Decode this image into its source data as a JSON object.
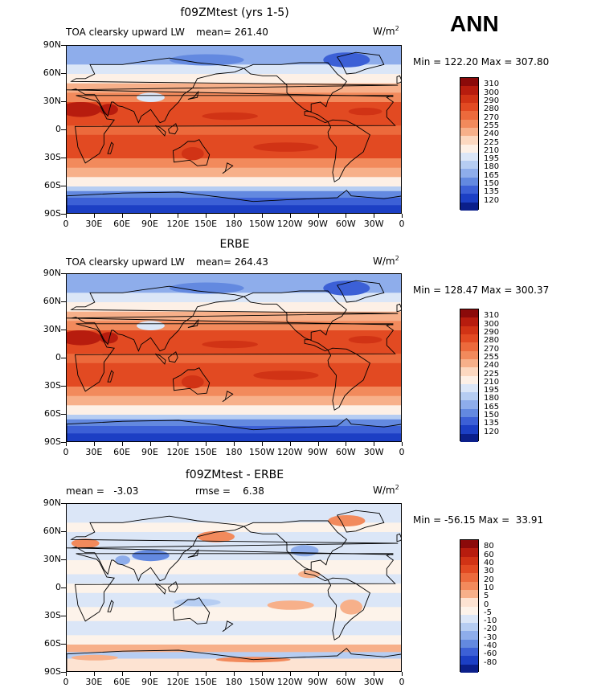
{
  "season": "ANN",
  "panels": [
    {
      "title": "f09ZMtest (yrs 1-5)",
      "left_label": "TOA clearsky upward LW",
      "mean_label": "mean= 261.40",
      "units": "W/m",
      "units_sup": "2",
      "minmax": "Min = 122.20 Max = 307.80"
    },
    {
      "title": "ERBE",
      "left_label": "TOA clearsky upward LW",
      "mean_label": "mean= 264.43",
      "units": "W/m",
      "units_sup": "2",
      "minmax": "Min = 128.47 Max = 300.37"
    },
    {
      "title": "f09ZMtest - ERBE",
      "left_label": "mean =   -3.03",
      "mean_label": "rmse =    6.38",
      "units": "W/m",
      "units_sup": "2",
      "minmax": "Min = -56.15 Max =  33.91"
    }
  ],
  "lat_labels": [
    "90N",
    "60N",
    "30N",
    "0",
    "30S",
    "60S",
    "90S"
  ],
  "lon_labels": [
    "0",
    "30E",
    "60E",
    "90E",
    "120E",
    "150E",
    "180",
    "150W",
    "120W",
    "90W",
    "60W",
    "30W",
    "0"
  ],
  "colorbar_abs": {
    "labels": [
      "310",
      "300",
      "290",
      "280",
      "270",
      "255",
      "240",
      "225",
      "210",
      "195",
      "180",
      "165",
      "150",
      "135",
      "120"
    ],
    "colors": [
      "#8b0a0a",
      "#b71c0e",
      "#d13315",
      "#e24a22",
      "#ec6a3c",
      "#f28a5c",
      "#f7b08a",
      "#fcd8c0",
      "#fdf0e6",
      "#dbe6f7",
      "#b6cdf2",
      "#8eadeb",
      "#6389e0",
      "#3c60d6",
      "#1c3fc4",
      "#0b1f8a"
    ]
  },
  "colorbar_diff": {
    "labels": [
      "80",
      "60",
      "40",
      "30",
      "20",
      "10",
      "5",
      "0",
      "-5",
      "-10",
      "-20",
      "-30",
      "-40",
      "-60",
      "-80"
    ],
    "colors": [
      "#8b0a0a",
      "#b71c0e",
      "#d13315",
      "#e24a22",
      "#ec6a3c",
      "#f28a5c",
      "#f7b08a",
      "#fde3d2",
      "#fdf3ea",
      "#dbe6f7",
      "#b6cdf2",
      "#8eadeb",
      "#6389e0",
      "#3c60d6",
      "#1c3fc4",
      "#0b1f8a"
    ]
  }
}
